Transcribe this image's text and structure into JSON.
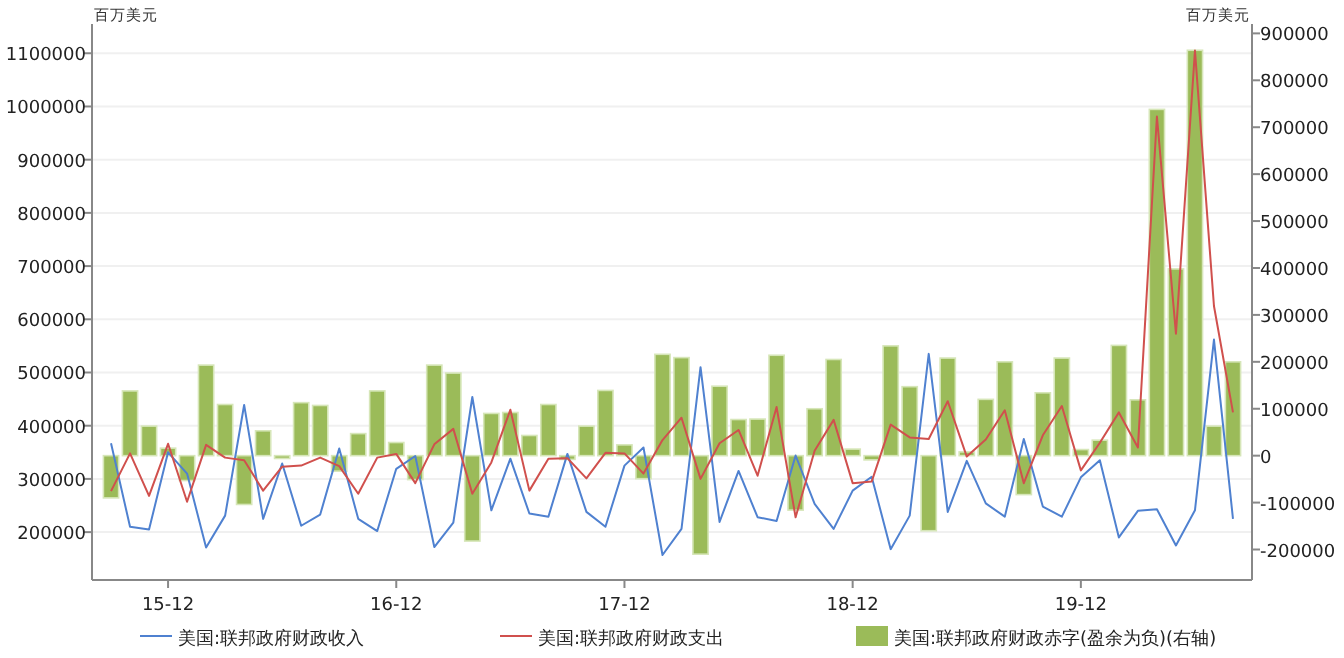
{
  "chart_data": {
    "type": "bar",
    "ylabel": "百万美元",
    "y2label": "百万美元",
    "categories": [
      null,
      null,
      null,
      "15-12",
      null,
      null,
      null,
      null,
      null,
      null,
      null,
      null,
      null,
      null,
      null,
      "16-12",
      null,
      null,
      null,
      null,
      null,
      null,
      null,
      null,
      null,
      null,
      null,
      "17-12",
      null,
      null,
      null,
      null,
      null,
      null,
      null,
      null,
      null,
      null,
      null,
      "18-12",
      null,
      null,
      null,
      null,
      null,
      null,
      null,
      null,
      null,
      null,
      null,
      "19-12",
      null,
      null,
      null,
      null,
      null,
      null,
      null,
      null
    ],
    "ylim": [
      110000,
      1155000
    ],
    "yticks": [
      200000,
      300000,
      400000,
      500000,
      600000,
      700000,
      800000,
      900000,
      1000000,
      1100000
    ],
    "y2lim": [
      -265000,
      920000
    ],
    "y2ticks": [
      -200000,
      -100000,
      0,
      100000,
      200000,
      300000,
      400000,
      500000,
      600000,
      700000,
      800000,
      900000
    ],
    "grid": "y",
    "legend": "bottom",
    "series": [
      {
        "name": "美国:联邦政府财政收入",
        "type": "line",
        "color": "#4f81d0",
        "values": [
          367000,
          210000,
          205000,
          350000,
          310000,
          171000,
          231000,
          439000,
          225000,
          329000,
          212000,
          233000,
          357000,
          225000,
          202000,
          319000,
          343000,
          172000,
          218000,
          454000,
          241000,
          338000,
          235000,
          229000,
          347000,
          238000,
          210000,
          325000,
          359000,
          157000,
          206000,
          510000,
          219000,
          315000,
          228000,
          221000,
          344000,
          253000,
          206000,
          278000,
          304000,
          168000,
          231000,
          535000,
          238000,
          334000,
          254000,
          229000,
          375000,
          248000,
          229000,
          303000,
          335000,
          190000,
          240000,
          243000,
          175000,
          241000,
          562000,
          225000
        ]
      },
      {
        "name": "美国:联邦政府财政支出",
        "type": "line",
        "color": "#d0504d",
        "values": [
          277000,
          348000,
          268000,
          366000,
          257000,
          364000,
          340000,
          335000,
          278000,
          323000,
          325000,
          340000,
          324000,
          272000,
          340000,
          347000,
          292000,
          365000,
          394000,
          272000,
          331000,
          430000,
          278000,
          338000,
          339000,
          301000,
          349000,
          348000,
          310000,
          373000,
          415000,
          300000,
          367000,
          392000,
          306000,
          435000,
          228000,
          353000,
          411000,
          292000,
          295000,
          402000,
          378000,
          375000,
          446000,
          342000,
          374000,
          429000,
          292000,
          382000,
          437000,
          316000,
          368000,
          425000,
          359000,
          981000,
          573000,
          1105000,
          625000,
          425000
        ]
      },
      {
        "name": "美国:联邦政府财政赤字(盈余为负)(右轴)",
        "axis": "y2",
        "color": "#9bbb59",
        "values": [
          -90000,
          138000,
          63000,
          16000,
          -53000,
          193000,
          109000,
          -104000,
          53000,
          -6000,
          113000,
          107000,
          -33000,
          47000,
          138000,
          28000,
          -51000,
          193000,
          176000,
          -182000,
          90000,
          92000,
          43000,
          109000,
          -8000,
          63000,
          139000,
          23000,
          -49000,
          216000,
          209000,
          -210000,
          148000,
          77000,
          78000,
          214000,
          -116000,
          100000,
          205000,
          14000,
          -9000,
          234000,
          147000,
          -160000,
          208000,
          8000,
          120000,
          200000,
          -83000,
          134000,
          208000,
          13000,
          33000,
          235000,
          119000,
          738000,
          398000,
          864000,
          63000,
          200000
        ]
      }
    ]
  }
}
